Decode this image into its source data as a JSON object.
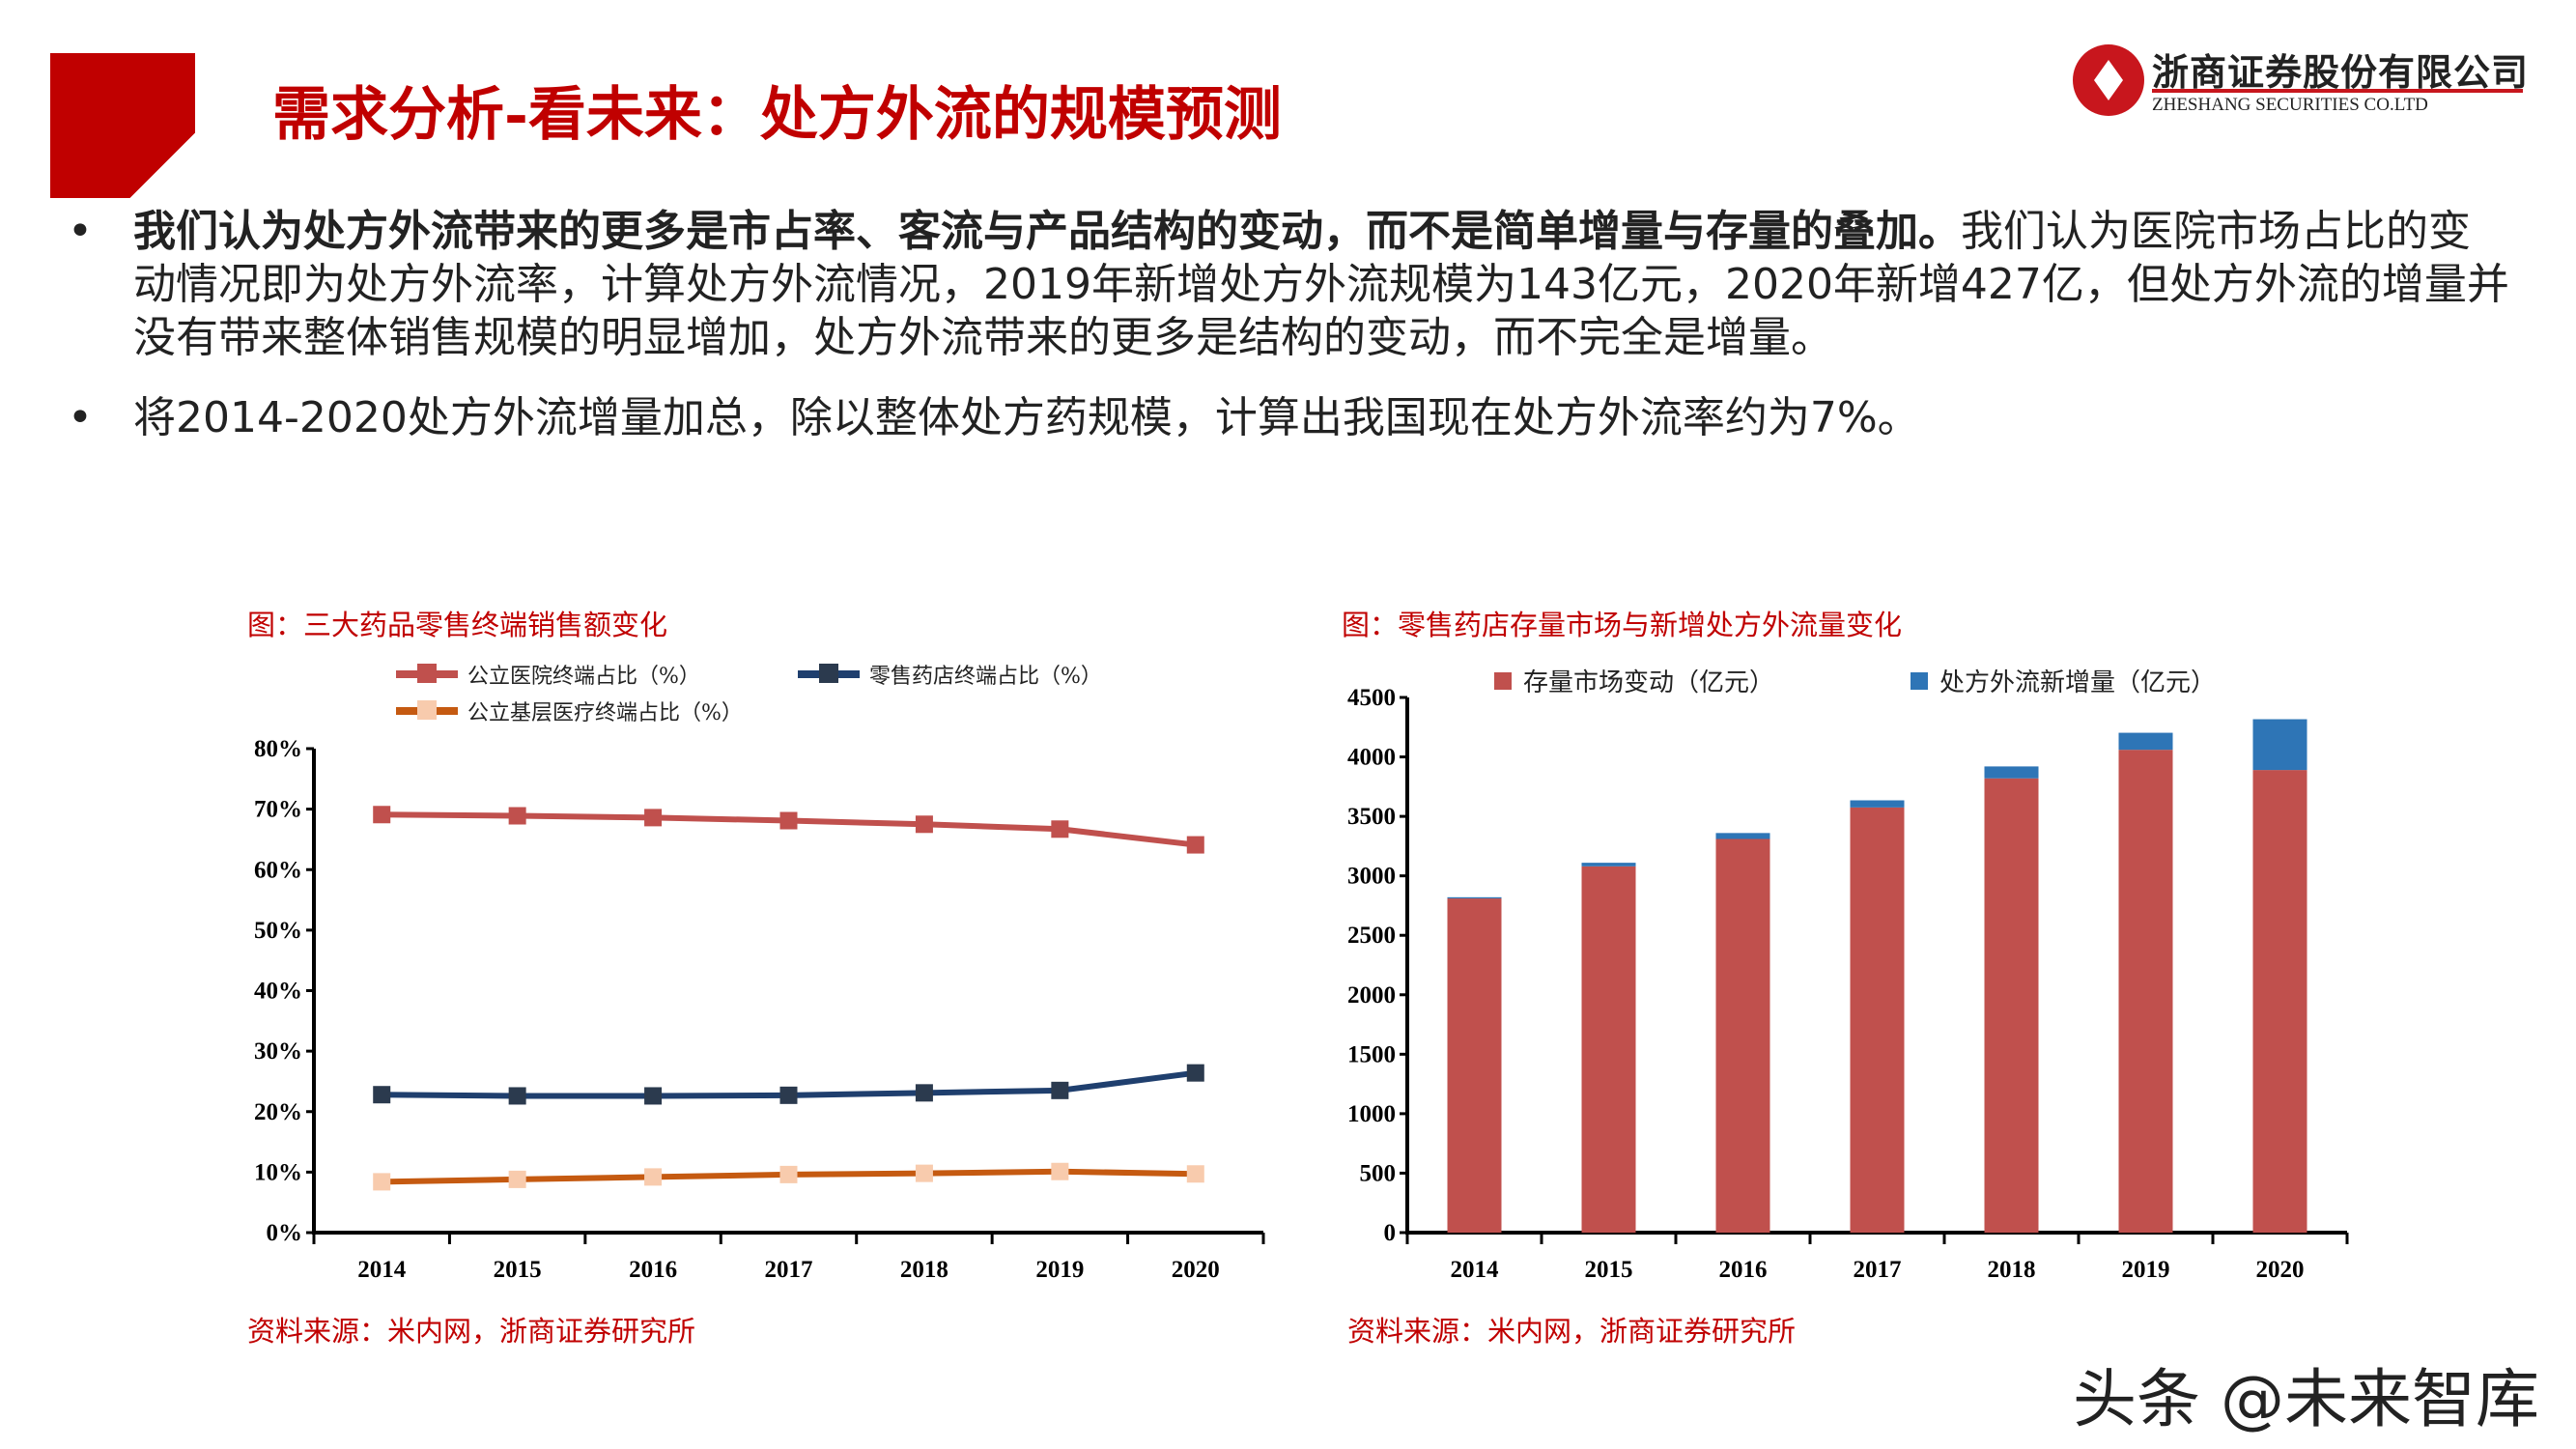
{
  "header": {
    "title": "需求分析-看未来：处方外流的规模预测",
    "logo_cn": "浙商证券股份有限公司",
    "logo_en": "ZHESHANG SECURITIES CO.LTD"
  },
  "bullets": [
    {
      "bold": "我们认为处方外流带来的更多是市占率、客流与产品结构的变动，而不是简单增量与存量的叠加。",
      "text": "我们认为医院市场占比的变动情况即为处方外流率，计算处方外流情况，2019年新增处方外流规模为143亿元，2020年新增427亿，但处方外流的增量并没有带来整体销售规模的明显增加，处方外流带来的更多是结构的变动，而不完全是增量。"
    },
    {
      "bold": "",
      "text": "将2014-2020处方外流增量加总，除以整体处方药规模，计算出我国现在处方外流率约为7%。"
    }
  ],
  "bullet_symbol": "•",
  "chart_data": [
    {
      "type": "line",
      "title": "图：三大药品零售终端销售额变化",
      "source": "资料来源：米内网，浙商证券研究所",
      "categories": [
        "2014",
        "2015",
        "2016",
        "2017",
        "2018",
        "2019",
        "2020"
      ],
      "yticks": [
        "0%",
        "10%",
        "20%",
        "30%",
        "40%",
        "50%",
        "60%",
        "70%",
        "80%"
      ],
      "ylim": [
        0,
        80
      ],
      "legend_position": "top",
      "series": [
        {
          "name": "公立医院终端占比（%）",
          "color": "#c0504d",
          "marker_color": "#c0504d",
          "values": [
            69.1,
            68.9,
            68.6,
            68.1,
            67.5,
            66.7,
            64.1
          ]
        },
        {
          "name": "零售药店终端占比（%）",
          "color": "#1f3f6e",
          "marker_color": "#2b3a4e",
          "values": [
            22.8,
            22.6,
            22.6,
            22.7,
            23.1,
            23.5,
            26.4
          ]
        },
        {
          "name": "公立基层医疗终端占比（%）",
          "color": "#c55a11",
          "marker_color": "#f8cbad",
          "values": [
            8.4,
            8.8,
            9.2,
            9.6,
            9.8,
            10.1,
            9.7
          ]
        }
      ]
    },
    {
      "type": "bar",
      "stacked": true,
      "title": "图：零售药店存量市场与新增处方外流量变化",
      "source": "资料来源：米内网，浙商证券研究所",
      "categories": [
        "2014",
        "2015",
        "2016",
        "2017",
        "2018",
        "2019",
        "2020"
      ],
      "yticks": [
        "0",
        "500",
        "1000",
        "1500",
        "2000",
        "2500",
        "3000",
        "3500",
        "4000",
        "4500"
      ],
      "ylim": [
        0,
        4500
      ],
      "legend_position": "top",
      "series": [
        {
          "name": "存量市场变动（亿元）",
          "color": "#c0504d",
          "values": [
            2810,
            3080,
            3310,
            3575,
            3820,
            4060,
            3890
          ]
        },
        {
          "name": "处方外流新增量（亿元）",
          "color": "#2e75b6",
          "values": [
            10,
            30,
            50,
            60,
            100,
            143,
            427
          ]
        }
      ]
    }
  ],
  "watermark": "头条 @未来智库"
}
